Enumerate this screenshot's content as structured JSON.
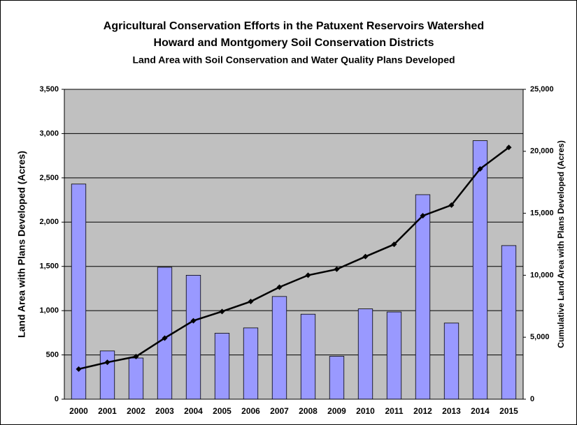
{
  "chart_data": {
    "type": "bar_line",
    "title": "Agricultural Conservation Efforts in the Patuxent Reservoirs Watershed",
    "subtitle": "Howard and Montgomery Soil Conservation Districts",
    "subtitle2": "Land Area with Soil Conservation and Water Quality Plans Developed",
    "ylabel": "Land Area with Plans Developed (Acres)",
    "y2label": "Cumulative Land Area with Plans Developed (Acres)",
    "categories": [
      "2000",
      "2001",
      "2002",
      "2003",
      "2004",
      "2005",
      "2006",
      "2007",
      "2008",
      "2009",
      "2010",
      "2011",
      "2012",
      "2013",
      "2014",
      "2015"
    ],
    "series": [
      {
        "color": "#9999ff",
        "values": [
          2430,
          545,
          465,
          1490,
          1400,
          745,
          805,
          1160,
          960,
          485,
          1020,
          985,
          2310,
          860,
          2920,
          1735
        ]
      },
      {
        "color": "#000000",
        "axis": "y2",
        "values": [
          2430,
          2975,
          3440,
          4930,
          6330,
          7075,
          7880,
          9040,
          10000,
          10485,
          11505,
          12490,
          14800,
          15660,
          18580,
          20315
        ]
      }
    ],
    "ylim": [
      0,
      3500
    ],
    "yticks": [
      0,
      {
        "value": 500,
        "label": "500"
      },
      {
        "value": 1000,
        "label": "1,000"
      },
      {
        "value": 1500,
        "label": "1,500"
      },
      {
        "value": 2000,
        "label": "2,000"
      },
      {
        "value": 2500,
        "label": "2,500"
      },
      {
        "value": 3000,
        "label": "3,000"
      },
      {
        "value": 3500,
        "label": "3,500"
      }
    ],
    "y2lim": [
      0,
      25000
    ],
    "y2ticks": [
      0,
      {
        "value": 5000,
        "label": "5,000"
      },
      {
        "value": 10000,
        "label": "10,000"
      },
      {
        "value": 15000,
        "label": "15,000"
      },
      {
        "value": 20000,
        "label": "20,000"
      },
      {
        "value": 25000,
        "label": "25,000"
      }
    ],
    "grid": true,
    "plot_background": "#c0c0c0"
  }
}
